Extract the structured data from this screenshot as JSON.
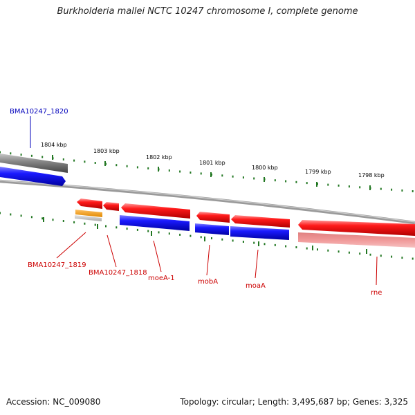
{
  "title": "Burkholderia mallei NCTC 10247 chromosome I, complete genome",
  "footer": {
    "accession": "Accession: NC_009080",
    "topology": "Topology: circular; Length: 3,495,687 bp; Genes: 3,325"
  },
  "colors": {
    "forward_cds": "#ee1111",
    "reverse_cds": "#1111ee",
    "pseudo": "#f09090",
    "gene": "#808080",
    "rna": "#f0a020",
    "tick": "#227722",
    "backbone": "#888888",
    "label_red": "#cc0000",
    "label_blue": "#0000bb"
  },
  "scale_labels": [
    "1804 kbp",
    "1803 kbp",
    "1802 kbp",
    "1801 kbp",
    "1800 kbp",
    "1799 kbp",
    "1798 kbp"
  ],
  "gene_labels": [
    {
      "text": "BMA10247_1820",
      "color": "blue"
    },
    {
      "text": "BMA10247_1819",
      "color": "red"
    },
    {
      "text": "BMA10247_1818",
      "color": "red"
    },
    {
      "text": "moeA-1",
      "color": "red"
    },
    {
      "text": "mobA",
      "color": "red"
    },
    {
      "text": "moaA",
      "color": "red"
    },
    {
      "text": "rne",
      "color": "red"
    }
  ]
}
